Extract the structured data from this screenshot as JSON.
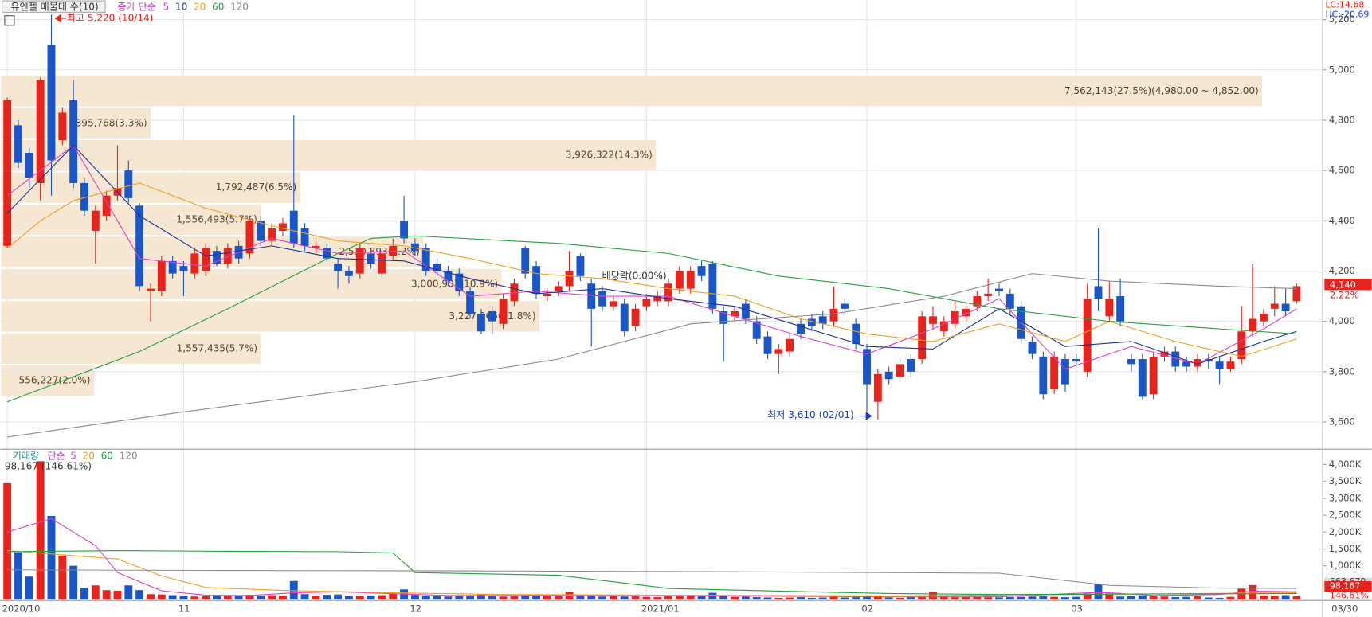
{
  "chart_data": [
    {
      "type": "candlestick",
      "title": "유엔젤 매물대 수(10)",
      "legend_label": "종가 단순",
      "categories": [
        "2020/10",
        null,
        null,
        null,
        null,
        null,
        null,
        null,
        null,
        null,
        null,
        null,
        null,
        null,
        null,
        null,
        "11",
        null,
        null,
        null,
        null,
        null,
        null,
        null,
        null,
        null,
        null,
        null,
        null,
        null,
        null,
        null,
        null,
        null,
        null,
        null,
        null,
        "12",
        null,
        null,
        null,
        null,
        null,
        null,
        null,
        null,
        null,
        null,
        null,
        null,
        null,
        null,
        null,
        null,
        null,
        null,
        null,
        null,
        "2021/01",
        null,
        null,
        null,
        null,
        null,
        null,
        null,
        null,
        null,
        null,
        null,
        null,
        null,
        null,
        null,
        null,
        null,
        null,
        null,
        "02",
        null,
        null,
        null,
        null,
        null,
        null,
        null,
        null,
        null,
        null,
        null,
        null,
        null,
        null,
        null,
        null,
        null,
        null,
        "03",
        null,
        null,
        null,
        null,
        null,
        null,
        null,
        null,
        null,
        null,
        null,
        null,
        null,
        null,
        null,
        null,
        null,
        null,
        null,
        null
      ],
      "last_date": "03/30",
      "open": [
        4300,
        4780,
        4670,
        4550,
        5100,
        4720,
        4880,
        4550,
        4360,
        4420,
        4500,
        4600,
        4460,
        4120,
        4120,
        4240,
        4220,
        4190,
        4200,
        4280,
        4230,
        4300,
        4270,
        4400,
        4320,
        4360,
        4440,
        4370,
        4290,
        4290,
        4230,
        4200,
        4190,
        4270,
        4190,
        4260,
        4400,
        4310,
        4290,
        4230,
        4200,
        4190,
        4120,
        4030,
        4040,
        3990,
        4080,
        4290,
        4220,
        4100,
        4120,
        4140,
        4260,
        4150,
        4120,
        4060,
        4070,
        3980,
        4060,
        4080,
        4080,
        4130,
        4130,
        4220,
        4230,
        4040,
        4020,
        4070,
        4000,
        3940,
        3870,
        3880,
        3990,
        4010,
        4020,
        4000,
        4070,
        3990,
        3890,
        3680,
        3800,
        3780,
        3850,
        3850,
        3990,
        3960,
        3990,
        4020,
        4060,
        4100,
        4130,
        4110,
        4060,
        3920,
        3860,
        3730,
        3850,
        3850,
        3800,
        4140,
        4020,
        4100,
        3850,
        3850,
        3710,
        3860,
        3880,
        3840,
        3820,
        3850,
        3840,
        3810,
        3850,
        3960,
        4000,
        4050,
        4070,
        4080
      ],
      "high": [
        4890,
        4800,
        4690,
        4970,
        5220,
        4850,
        4960,
        4570,
        4460,
        4520,
        4700,
        4640,
        4470,
        4150,
        4260,
        4260,
        4240,
        4290,
        4310,
        4300,
        4310,
        4320,
        4420,
        4420,
        4390,
        4410,
        4820,
        4390,
        4320,
        4310,
        4250,
        4220,
        4310,
        4290,
        4290,
        4330,
        4500,
        4330,
        4310,
        4250,
        4220,
        4210,
        4140,
        4050,
        4060,
        4110,
        4170,
        4300,
        4240,
        4130,
        4160,
        4280,
        4270,
        4170,
        4140,
        4100,
        4090,
        4070,
        4110,
        4120,
        4170,
        4220,
        4220,
        4240,
        4240,
        4060,
        4060,
        4090,
        4020,
        3960,
        3910,
        3950,
        4010,
        4030,
        4040,
        4140,
        4090,
        4010,
        3910,
        3810,
        3820,
        3850,
        3870,
        4040,
        4060,
        4020,
        4080,
        4070,
        4120,
        4170,
        4150,
        4130,
        4080,
        3940,
        3880,
        3880,
        3870,
        3870,
        4150,
        4370,
        4160,
        4170,
        3870,
        3870,
        3880,
        3900,
        3900,
        3860,
        3870,
        3870,
        3860,
        3860,
        4060,
        4230,
        4050,
        4140,
        4130,
        4150
      ],
      "low": [
        4290,
        4610,
        4530,
        4480,
        4500,
        4700,
        4530,
        4420,
        4230,
        4400,
        4480,
        4470,
        4120,
        4000,
        4100,
        4170,
        4100,
        4170,
        4180,
        4220,
        4210,
        4230,
        4250,
        4300,
        4300,
        4340,
        4290,
        4280,
        4270,
        4240,
        4130,
        4150,
        4170,
        4210,
        4170,
        4240,
        4310,
        4260,
        4180,
        4180,
        4140,
        4100,
        4010,
        3950,
        3950,
        3970,
        4060,
        4170,
        4090,
        4080,
        4100,
        4120,
        4160,
        3900,
        4040,
        4040,
        3940,
        3960,
        4040,
        4060,
        4060,
        4110,
        4110,
        4160,
        4030,
        3840,
        4000,
        3990,
        3910,
        3850,
        3790,
        3860,
        3930,
        3960,
        3970,
        3980,
        4030,
        3890,
        3640,
        3610,
        3750,
        3760,
        3780,
        3830,
        3970,
        3940,
        3970,
        4000,
        4040,
        4080,
        4100,
        4030,
        3910,
        3850,
        3690,
        3710,
        3720,
        3820,
        3780,
        4040,
        4000,
        3980,
        3800,
        3690,
        3690,
        3840,
        3800,
        3800,
        3800,
        3810,
        3750,
        3800,
        3830,
        3940,
        3980,
        4020,
        4020,
        4070
      ],
      "close": [
        4880,
        4630,
        4570,
        4960,
        4640,
        4830,
        4550,
        4440,
        4440,
        4500,
        4530,
        4490,
        4140,
        4130,
        4240,
        4190,
        4200,
        4270,
        4290,
        4230,
        4290,
        4250,
        4400,
        4320,
        4370,
        4390,
        4310,
        4300,
        4300,
        4250,
        4200,
        4180,
        4290,
        4230,
        4270,
        4300,
        4330,
        4280,
        4200,
        4200,
        4160,
        4120,
        4030,
        3960,
        4000,
        4090,
        4150,
        4190,
        4110,
        4110,
        4140,
        4200,
        4180,
        4050,
        4060,
        4080,
        3960,
        4050,
        4090,
        4100,
        4150,
        4200,
        4200,
        4180,
        4050,
        3990,
        4040,
        4010,
        3930,
        3870,
        3890,
        3930,
        3950,
        3980,
        3990,
        4050,
        4050,
        3910,
        3750,
        3790,
        3770,
        3830,
        3800,
        4020,
        4020,
        4000,
        4040,
        4050,
        4100,
        4110,
        4120,
        4050,
        3930,
        3870,
        3710,
        3860,
        3750,
        3840,
        4090,
        4090,
        4090,
        4000,
        3830,
        3700,
        3860,
        3880,
        3820,
        3820,
        3850,
        3840,
        3810,
        3840,
        3960,
        4010,
        4030,
        4070,
        4040,
        4140
      ],
      "up_color": "#e8231c",
      "down_color": "#1a56c8",
      "series": [
        {
          "name": "5",
          "color": "#e040c8",
          "x": [
            0,
            6,
            12,
            18,
            24,
            30,
            36,
            42,
            48,
            54,
            60,
            66,
            72,
            78,
            84,
            90,
            96,
            102,
            108,
            114,
            117
          ],
          "values": [
            4500,
            4700,
            4250,
            4220,
            4330,
            4270,
            4280,
            4100,
            4120,
            4100,
            4100,
            4020,
            3940,
            3870,
            3970,
            4090,
            3810,
            3900,
            3830,
            3970,
            4050
          ]
        },
        {
          "name": "10",
          "color": "#1c2f9a",
          "x": [
            0,
            6,
            12,
            18,
            24,
            30,
            36,
            42,
            48,
            54,
            60,
            66,
            72,
            78,
            84,
            90,
            96,
            102,
            108,
            114,
            117
          ],
          "values": [
            4430,
            4700,
            4420,
            4260,
            4300,
            4250,
            4240,
            4170,
            4110,
            4130,
            4090,
            4060,
            3980,
            3900,
            3890,
            4050,
            3900,
            3920,
            3830,
            3920,
            3960
          ]
        },
        {
          "name": "20",
          "color": "#f0a020",
          "x": [
            0,
            3,
            6,
            12,
            18,
            24,
            30,
            36,
            42,
            48,
            54,
            60,
            66,
            72,
            78,
            84,
            90,
            96,
            100,
            106,
            112,
            117
          ],
          "values": [
            4290,
            4400,
            4480,
            4550,
            4450,
            4380,
            4320,
            4300,
            4250,
            4190,
            4170,
            4130,
            4100,
            4010,
            3950,
            3920,
            3990,
            3920,
            4000,
            3920,
            3860,
            3930
          ]
        },
        {
          "name": "60",
          "color": "#22a040",
          "x": [
            0,
            12,
            20,
            30,
            33,
            37,
            50,
            60,
            70,
            80,
            90,
            100,
            110,
            117
          ],
          "values": [
            3680,
            3880,
            4050,
            4270,
            4330,
            4340,
            4310,
            4270,
            4180,
            4130,
            4050,
            4000,
            3970,
            3950
          ]
        },
        {
          "name": "120",
          "color": "#8a8a8a",
          "x": [
            0,
            16,
            37,
            50,
            62,
            75,
            85,
            93,
            100,
            110,
            117
          ],
          "values": [
            3540,
            3640,
            3760,
            3850,
            3990,
            4030,
            4100,
            4190,
            4160,
            4140,
            4130
          ]
        }
      ],
      "profile": {
        "bins": [
          3700,
          3828,
          3956,
          4084,
          4212,
          4340,
          4468,
          4596,
          4724,
          4852,
          4980
        ],
        "values": [
          556227,
          1557435,
          3227366,
          3000907,
          2530893,
          1556493,
          1792487,
          3926322,
          895768,
          7562143
        ],
        "value_labels": [
          "556,227(2.0%)",
          "1,557,435(5.7%)",
          "3,227,366(11.8%)",
          "3,000,907(10.9%)",
          "2,530,893(9.2%)",
          "1,556,493(5.7%)",
          "1,792,487(6.5%)",
          "3,926,322(14.3%)",
          "895,768(3.3%)",
          "7,562,143(27.5%)(4,980.00 ~ 4,852.00)"
        ],
        "xlim": [
          0,
          7920000
        ],
        "color": "#f6e7d2"
      },
      "annotations": [
        "최고 5,220 (10/14)",
        "최저 3,610 (02/01)",
        "배당락(0.00%)"
      ],
      "lc": "LC:14.68",
      "hc": "HC:-20.69",
      "price_tag": "4,140",
      "change_tag": "2.22%",
      "ylim": [
        3495,
        5278
      ],
      "yticks": [
        {
          "value": 3600,
          "label": "3,600"
        },
        {
          "value": 3800,
          "label": "3,800"
        },
        {
          "value": 4000,
          "label": "4,000"
        },
        {
          "value": 4200,
          "label": "4,200"
        },
        {
          "value": 4400,
          "label": "4,400"
        },
        {
          "value": 4600,
          "label": "4,600"
        },
        {
          "value": 4800,
          "label": "4,800"
        },
        {
          "value": 5000,
          "label": "5,000"
        },
        {
          "value": 5200,
          "label": "5,200"
        }
      ],
      "grid": true
    },
    {
      "type": "bar",
      "legend_label": "거래량",
      "legend_label2": "단순",
      "info": "98,167 (146.61%)",
      "values": [
        3450000,
        1400000,
        680000,
        4100000,
        2480000,
        1300000,
        1000000,
        350000,
        420000,
        280000,
        260000,
        420000,
        280000,
        160000,
        150000,
        130000,
        110000,
        90000,
        100000,
        130000,
        110000,
        120000,
        140000,
        110000,
        130000,
        120000,
        550000,
        160000,
        120000,
        140000,
        150000,
        100000,
        110000,
        120000,
        130000,
        180000,
        300000,
        140000,
        120000,
        100000,
        90000,
        100000,
        130000,
        150000,
        110000,
        90000,
        100000,
        120000,
        130000,
        110000,
        100000,
        220000,
        140000,
        110000,
        90000,
        100000,
        90000,
        100000,
        80000,
        70000,
        100000,
        120000,
        130000,
        120000,
        200000,
        110000,
        80000,
        90000,
        70000,
        60000,
        50000,
        60000,
        70000,
        50000,
        60000,
        80000,
        60000,
        70000,
        90000,
        110000,
        60000,
        50000,
        70000,
        80000,
        220000,
        90000,
        70000,
        80000,
        90000,
        70000,
        60000,
        70000,
        80000,
        90000,
        100000,
        80000,
        70000,
        80000,
        180000,
        460000,
        180000,
        90000,
        100000,
        120000,
        110000,
        90000,
        70000,
        80000,
        100000,
        60000,
        50000,
        80000,
        320000,
        430000,
        120000,
        110000,
        130000,
        98167
      ],
      "series": [
        {
          "name": "5",
          "color": "#e040c8",
          "x": [
            0,
            4,
            8,
            10,
            14,
            18,
            22,
            26,
            30,
            40,
            50,
            60,
            80,
            90,
            98,
            100,
            104,
            110,
            113,
            117
          ],
          "values": [
            2000000,
            2400000,
            1600000,
            800000,
            260000,
            130000,
            120000,
            200000,
            230000,
            120000,
            120000,
            120000,
            80000,
            80000,
            200000,
            200000,
            120000,
            150000,
            250000,
            230000
          ]
        },
        {
          "name": "20",
          "color": "#f0a020",
          "x": [
            0,
            10,
            14,
            18,
            25,
            35,
            45,
            60,
            80,
            100,
            117
          ],
          "values": [
            1450000,
            1200000,
            700000,
            360000,
            270000,
            200000,
            150000,
            130000,
            110000,
            160000,
            200000
          ]
        },
        {
          "name": "60",
          "color": "#22a040",
          "x": [
            0,
            10,
            20,
            30,
            35,
            37,
            50,
            60,
            70,
            80,
            90,
            100,
            110,
            117
          ],
          "values": [
            1420000,
            1450000,
            1430000,
            1420000,
            1380000,
            800000,
            720000,
            330000,
            250000,
            180000,
            150000,
            160000,
            170000,
            180000
          ]
        },
        {
          "name": "120",
          "color": "#8a8a8a",
          "x": [
            0,
            20,
            40,
            60,
            80,
            90,
            100,
            110,
            117
          ],
          "values": [
            880000,
            860000,
            850000,
            830000,
            800000,
            780000,
            420000,
            340000,
            330000
          ]
        }
      ],
      "value_tag": "98,167",
      "change_tag": "146.61%",
      "ma_tag": "563,670",
      "ylim": [
        0,
        4378000
      ],
      "yticks": [
        {
          "value": 1000000,
          "label": "1,000K"
        },
        {
          "value": 1500000,
          "label": "1,500K"
        },
        {
          "value": 2000000,
          "label": "2,000K"
        },
        {
          "value": 2500000,
          "label": "2,500K"
        },
        {
          "value": 3000000,
          "label": "3,000K"
        },
        {
          "value": 3500000,
          "label": "3,500K"
        },
        {
          "value": 4000000,
          "label": "4,000K"
        }
      ]
    }
  ]
}
